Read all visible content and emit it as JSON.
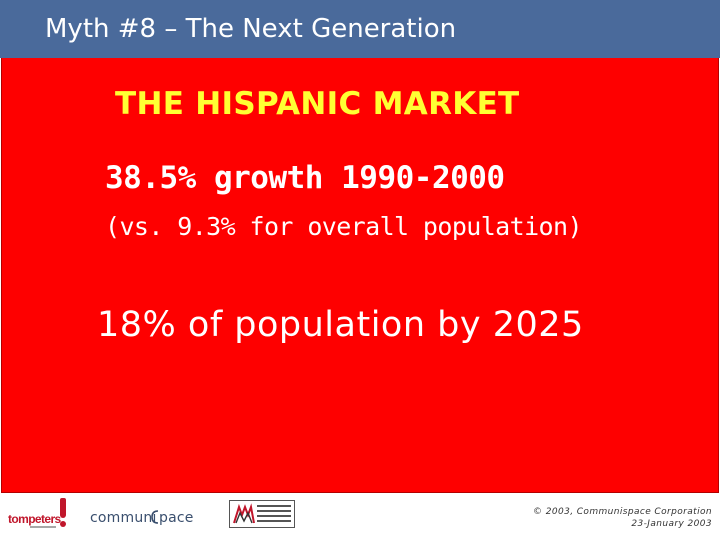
{
  "slide": {
    "header_title": "Myth #8 – The Next Generation",
    "market_title": "THE HISPANIC MARKET",
    "growth_line": "38.5% growth 1990-2000",
    "comparison_line": "(vs. 9.3% for overall population)",
    "projection_line": "18% of population by 2025"
  },
  "footer": {
    "logos": {
      "tompeters": "tompeters!",
      "communispace": "communispace",
      "ama": "American Marketing Association logo"
    },
    "copyright_line1": "© 2003, Communispace Corporation",
    "copyright_line2": "23-January 2003"
  },
  "colors": {
    "header_bg": "#4a6a9b",
    "content_bg": "#fe0000",
    "title_yellow": "#ffff33",
    "text_white": "#ffffff"
  }
}
